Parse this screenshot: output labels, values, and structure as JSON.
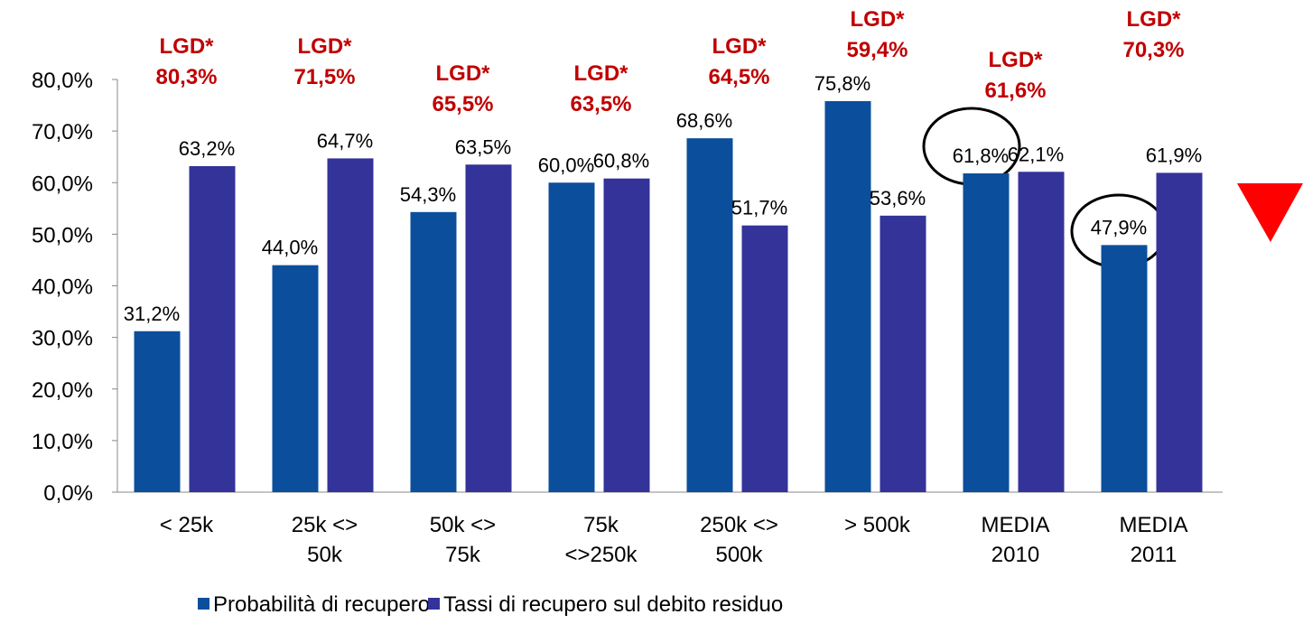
{
  "chart_data": {
    "type": "bar",
    "categories": [
      "< 25k",
      "25k <>\n50k",
      "50k <>\n75k",
      "75k\n<>250k",
      "250k <>\n500k",
      "> 500k",
      "MEDIA\n2010",
      "MEDIA\n2011"
    ],
    "series": [
      {
        "name": "Probabilità di recupero",
        "color": "#0b4f9c",
        "values": [
          31.2,
          44.0,
          54.3,
          60.0,
          68.6,
          75.8,
          61.8,
          47.9
        ],
        "value_labels": [
          "31,2%",
          "44,0%",
          "54,3%",
          "60,0%",
          "68,6%",
          "75,8%",
          "61,8%",
          "47,9%"
        ]
      },
      {
        "name": "Tassi di recupero sul debito residuo",
        "color": "#333399",
        "values": [
          63.2,
          64.7,
          63.5,
          60.8,
          51.7,
          53.6,
          62.1,
          61.9
        ],
        "value_labels": [
          "63,2%",
          "64,7%",
          "63,5%",
          "60,8%",
          "51,7%",
          "53,6%",
          "62,1%",
          "61,9%"
        ]
      }
    ],
    "annotations": {
      "label": "LGD*",
      "color": "#c00000",
      "values": [
        80.3,
        71.5,
        65.5,
        63.5,
        64.5,
        59.4,
        61.6,
        70.3
      ],
      "value_labels": [
        "80,3%",
        "71,5%",
        "65,5%",
        "63,5%",
        "64,5%",
        "59,4%",
        "61,6%",
        "70,3%"
      ]
    },
    "ylim": [
      0,
      80
    ],
    "yticks": [
      {
        "value": 0,
        "label": "0,0%"
      },
      {
        "value": 10,
        "label": "10,0%"
      },
      {
        "value": 20,
        "label": "20,0%"
      },
      {
        "value": 30,
        "label": "30,0%"
      },
      {
        "value": 40,
        "label": "40,0%"
      },
      {
        "value": 50,
        "label": "50,0%"
      },
      {
        "value": 60,
        "label": "60,0%"
      },
      {
        "value": 70,
        "label": "70,0%"
      },
      {
        "value": 80,
        "label": "80,0%"
      }
    ],
    "legend": "bottom"
  }
}
